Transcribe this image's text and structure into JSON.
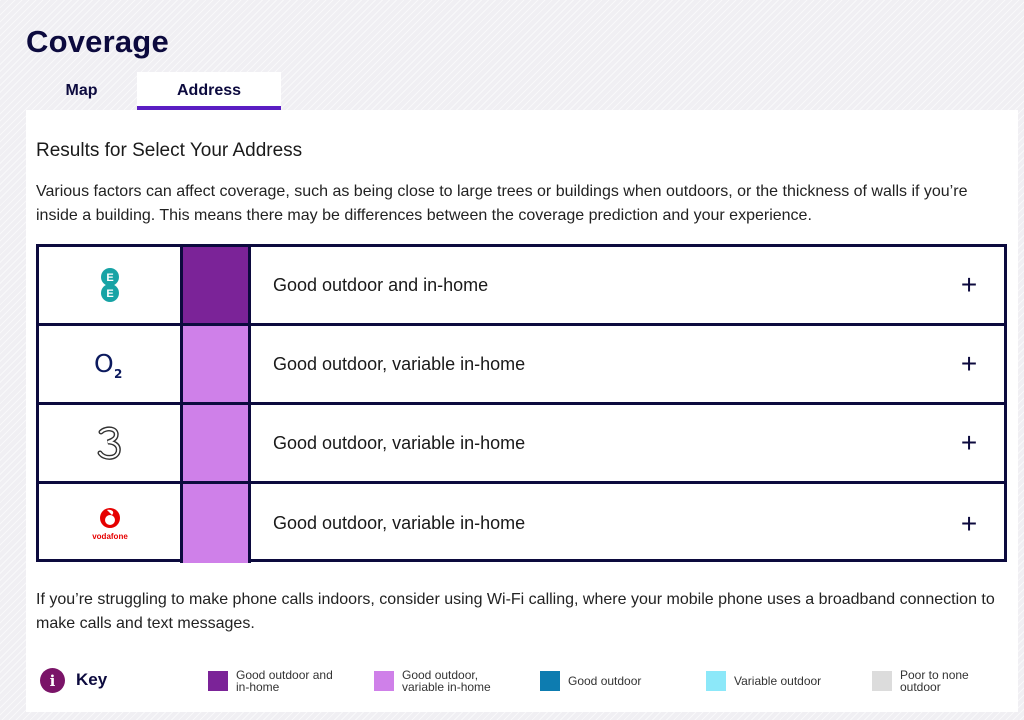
{
  "page": {
    "title": "Coverage"
  },
  "tabs": [
    {
      "label": "Map",
      "selected": false
    },
    {
      "label": "Address",
      "selected": true
    }
  ],
  "results": {
    "heading": "Results for Select Your Address",
    "intro": "Various factors can affect coverage, such as being close to large trees or buildings when outdoors, or the thickness of walls if you’re inside a building. This means there may be differences between the coverage prediction and your experience.",
    "rows": [
      {
        "network_icon": "ee-logo-icon",
        "status": "Good outdoor and in-home",
        "color": "#7b2398",
        "expand": "+"
      },
      {
        "network_icon": "o2-logo-icon",
        "status": "Good outdoor, variable in-home",
        "color": "#cf80e9",
        "expand": "+"
      },
      {
        "network_icon": "three-logo-icon",
        "status": "Good outdoor, variable in-home",
        "color": "#cf80e9",
        "expand": "+"
      },
      {
        "network_icon": "vodafone-logo-icon",
        "logo_text": "vodafone",
        "status": "Good outdoor, variable in-home",
        "color": "#cf80e9",
        "expand": "+"
      }
    ],
    "bottom_note": "If you’re struggling to make phone calls indoors, consider using Wi-Fi calling, where your mobile phone uses a broadband connection to make calls and text messages."
  },
  "key": {
    "icon": "info-icon",
    "icon_glyph": "i",
    "title": "Key",
    "items": [
      {
        "label": "Good outdoor and in-home",
        "color": "#7b2398"
      },
      {
        "label": "Good outdoor, variable in-home",
        "color": "#cf80e9"
      },
      {
        "label": "Good outdoor",
        "color": "#0d7cb0"
      },
      {
        "label": "Variable outdoor",
        "color": "#8ce8f9"
      },
      {
        "label": "Poor to none outdoor",
        "color": "#dcdcdc"
      }
    ]
  }
}
